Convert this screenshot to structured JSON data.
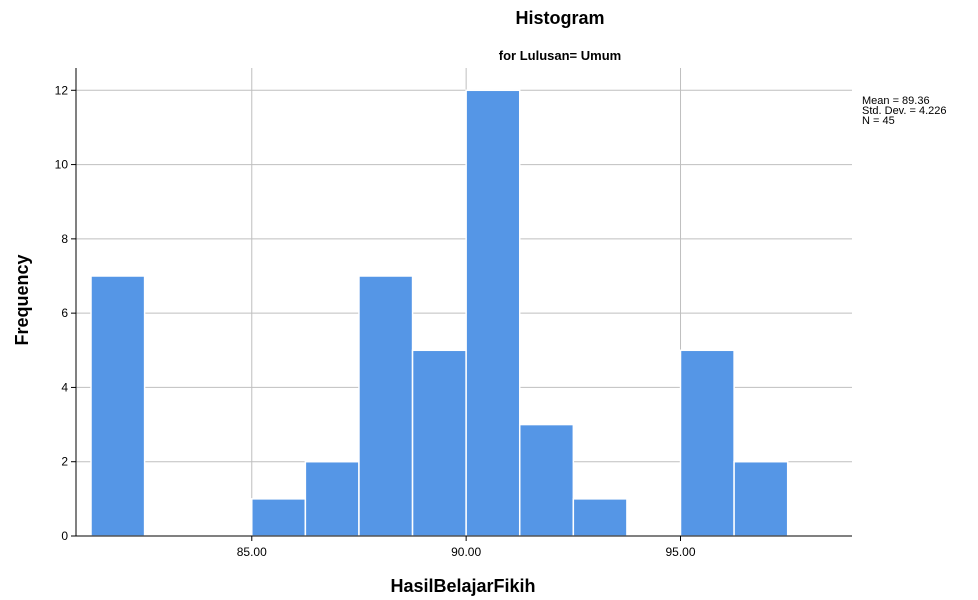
{
  "chart_data": {
    "type": "bar",
    "title": "Histogram",
    "subtitle": "for Lulusan= Umum",
    "xlabel": "HasilBelajarFikih",
    "ylabel": "Frequency",
    "xlim": [
      80.9,
      99.0
    ],
    "ylim": [
      0,
      12.6
    ],
    "x_ticks": [
      85.0,
      90.0,
      95.0
    ],
    "x_tick_labels": [
      "85.00",
      "90.00",
      "95.00"
    ],
    "y_ticks": [
      0,
      2,
      4,
      6,
      8,
      10,
      12
    ],
    "y_tick_labels": [
      "0",
      "2",
      "4",
      "6",
      "8",
      "10",
      "12"
    ],
    "bin_width": 1.25,
    "bins": [
      {
        "start": 81.25,
        "value": 7
      },
      {
        "start": 85.0,
        "value": 1
      },
      {
        "start": 86.25,
        "value": 2
      },
      {
        "start": 87.5,
        "value": 7
      },
      {
        "start": 88.75,
        "value": 5
      },
      {
        "start": 90.0,
        "value": 12
      },
      {
        "start": 91.25,
        "value": 3
      },
      {
        "start": 92.5,
        "value": 1
      },
      {
        "start": 95.0,
        "value": 5
      },
      {
        "start": 96.25,
        "value": 2
      }
    ],
    "bar_color": "#5596e6",
    "grid": true,
    "stats": {
      "mean": "Mean = 89.36",
      "std": "Std. Dev. = 4.226",
      "n": "N = 45"
    }
  }
}
